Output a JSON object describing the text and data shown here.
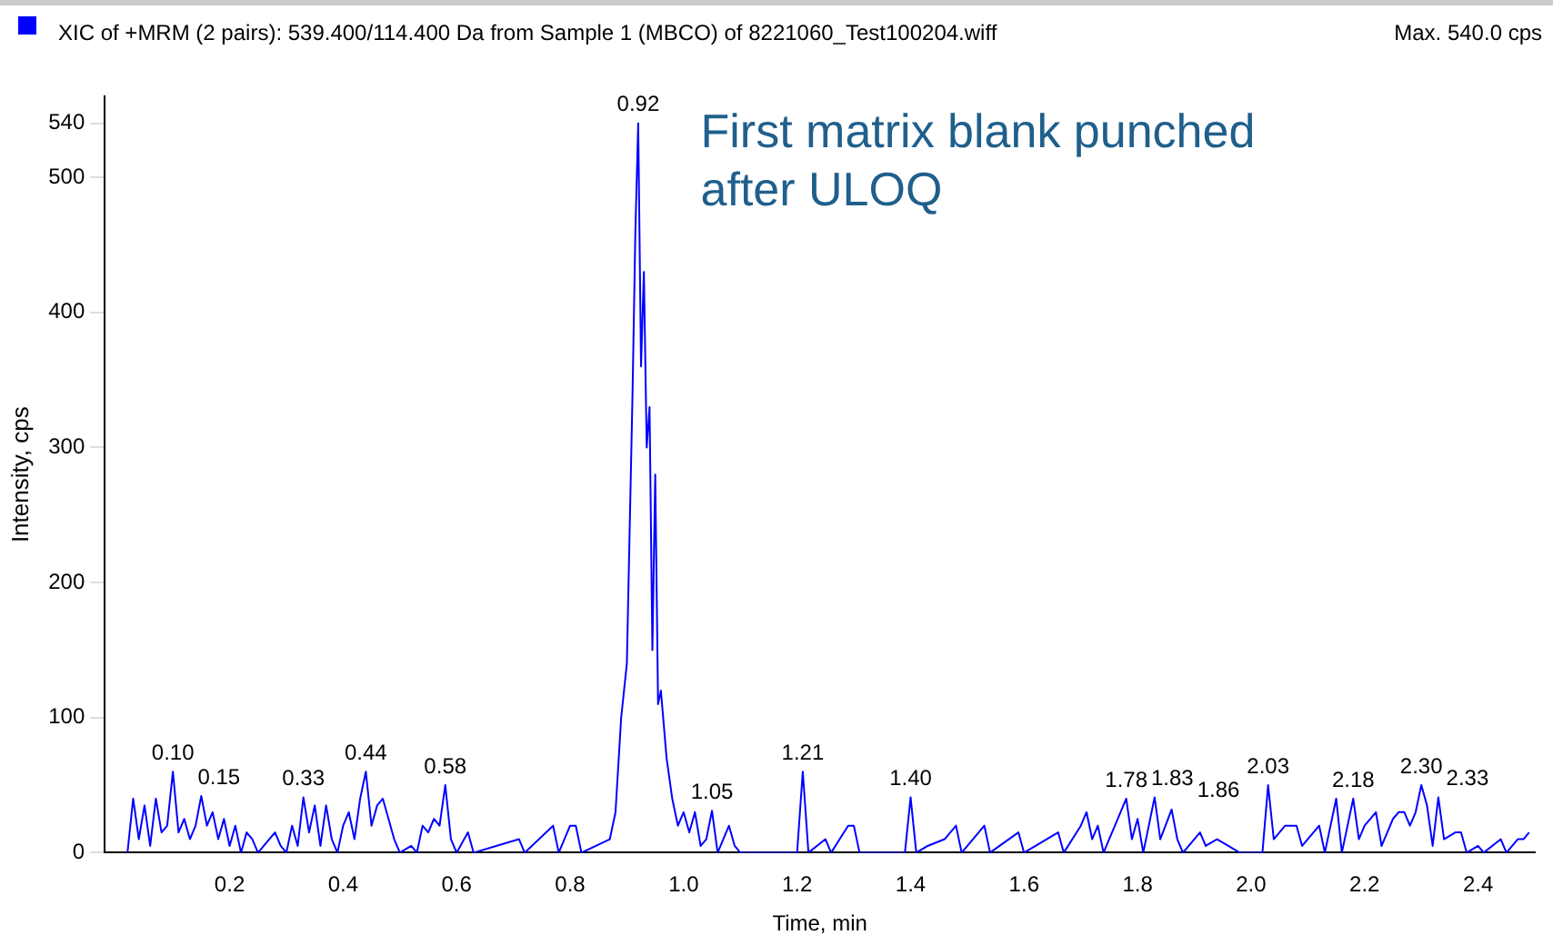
{
  "chart_data": {
    "type": "line",
    "title": "XIC of +MRM (2 pairs): 539.400/114.400 Da  from Sample 1 (MBCO) of 8221060_Test100204.wiff",
    "subtitle": "Max. 540.0 cps",
    "xlabel": "Time, min",
    "ylabel": "Intensity, cps",
    "xlim": [
      -0.02,
      2.5
    ],
    "xticks": [
      0.2,
      0.4,
      0.6,
      0.8,
      {
        "value": 1,
        "label": "1.0"
      },
      1.2,
      1.4,
      1.6,
      1.8,
      {
        "value": 2,
        "label": "2.0"
      },
      2.2,
      2.4
    ],
    "ylim": [
      0,
      560
    ],
    "yticks": [
      0,
      100,
      200,
      300,
      400,
      500,
      540
    ],
    "grid": false,
    "legend": false,
    "marker": "none",
    "line_style": "solid",
    "series": [
      {
        "color": "#0000ff",
        "x": [
          0.02,
          0.03,
          0.04,
          0.05,
          0.06,
          0.07,
          0.08,
          0.09,
          0.1,
          0.11,
          0.12,
          0.13,
          0.14,
          0.15,
          0.16,
          0.17,
          0.18,
          0.19,
          0.2,
          0.21,
          0.22,
          0.23,
          0.24,
          0.25,
          0.28,
          0.29,
          0.3,
          0.31,
          0.32,
          0.33,
          0.34,
          0.35,
          0.36,
          0.37,
          0.38,
          0.39,
          0.4,
          0.41,
          0.42,
          0.43,
          0.44,
          0.45,
          0.46,
          0.47,
          0.48,
          0.49,
          0.5,
          0.52,
          0.53,
          0.54,
          0.55,
          0.56,
          0.57,
          0.58,
          0.59,
          0.6,
          0.62,
          0.63,
          0.71,
          0.72,
          0.77,
          0.78,
          0.8,
          0.81,
          0.82,
          0.87,
          0.88,
          0.89,
          0.9,
          0.91,
          0.915,
          0.92,
          0.925,
          0.93,
          0.935,
          0.94,
          0.945,
          0.95,
          0.955,
          0.96,
          0.97,
          0.98,
          0.99,
          1.0,
          1.01,
          1.02,
          1.03,
          1.04,
          1.05,
          1.06,
          1.08,
          1.09,
          1.1,
          1.2,
          1.21,
          1.22,
          1.25,
          1.26,
          1.29,
          1.3,
          1.31,
          1.39,
          1.4,
          1.41,
          1.43,
          1.46,
          1.48,
          1.49,
          1.53,
          1.54,
          1.59,
          1.6,
          1.66,
          1.67,
          1.7,
          1.71,
          1.72,
          1.73,
          1.74,
          1.77,
          1.78,
          1.79,
          1.8,
          1.81,
          1.83,
          1.84,
          1.86,
          1.87,
          1.88,
          1.91,
          1.92,
          1.94,
          1.96,
          1.98,
          2.02,
          2.03,
          2.04,
          2.06,
          2.08,
          2.09,
          2.12,
          2.13,
          2.15,
          2.16,
          2.18,
          2.19,
          2.2,
          2.22,
          2.23,
          2.25,
          2.26,
          2.27,
          2.28,
          2.29,
          2.3,
          2.31,
          2.32,
          2.33,
          2.34,
          2.36,
          2.37,
          2.38,
          2.4,
          2.41,
          2.44,
          2.45,
          2.47,
          2.48,
          2.49
        ],
        "values": [
          0,
          40,
          10,
          35,
          5,
          40,
          15,
          20,
          60,
          15,
          25,
          10,
          20,
          42,
          20,
          30,
          10,
          25,
          5,
          20,
          0,
          15,
          10,
          0,
          15,
          5,
          0,
          20,
          5,
          41,
          15,
          35,
          5,
          35,
          10,
          0,
          20,
          30,
          10,
          40,
          60,
          20,
          35,
          40,
          25,
          10,
          0,
          5,
          0,
          20,
          15,
          25,
          20,
          50,
          10,
          0,
          15,
          0,
          10,
          0,
          20,
          0,
          20,
          20,
          0,
          10,
          30,
          100,
          140,
          340,
          460,
          540,
          360,
          430,
          300,
          330,
          150,
          280,
          110,
          120,
          70,
          40,
          20,
          30,
          15,
          30,
          5,
          10,
          31,
          0,
          20,
          5,
          0,
          0,
          60,
          0,
          10,
          0,
          20,
          20,
          0,
          0,
          41,
          0,
          5,
          10,
          20,
          0,
          20,
          0,
          15,
          0,
          15,
          0,
          20,
          30,
          10,
          20,
          0,
          30,
          40,
          10,
          25,
          0,
          41,
          10,
          32,
          10,
          0,
          15,
          5,
          10,
          5,
          0,
          0,
          50,
          10,
          20,
          20,
          5,
          20,
          0,
          40,
          0,
          40,
          10,
          20,
          30,
          5,
          25,
          30,
          30,
          20,
          30,
          50,
          35,
          5,
          41,
          10,
          15,
          15,
          0,
          5,
          0,
          10,
          0,
          10,
          10,
          15
        ]
      }
    ],
    "annotations": [
      "First matrix blank punched\nafter ULOQ",
      {
        "text": "0.10",
        "x": 0.1,
        "y": 60
      },
      {
        "text": "0.15",
        "x": 0.15,
        "y": 42
      },
      {
        "text": "0.33",
        "x": 0.33,
        "y": 41
      },
      {
        "text": "0.44",
        "x": 0.44,
        "y": 60
      },
      {
        "text": "0.58",
        "x": 0.58,
        "y": 50
      },
      {
        "text": "0.92",
        "x": 0.92,
        "y": 540
      },
      {
        "text": "1.05",
        "x": 1.05,
        "y": 31
      },
      {
        "text": "1.21",
        "x": 1.21,
        "y": 60
      },
      {
        "text": "1.40",
        "x": 1.4,
        "y": 41
      },
      {
        "text": "1.78",
        "x": 1.78,
        "y": 40
      },
      {
        "text": "1.83",
        "x": 1.83,
        "y": 41
      },
      {
        "text": "1.86",
        "x": 1.86,
        "y": 32
      },
      {
        "text": "2.03",
        "x": 2.03,
        "y": 50
      },
      {
        "text": "2.18",
        "x": 2.18,
        "y": 40
      },
      {
        "text": "2.30",
        "x": 2.3,
        "y": 50
      },
      {
        "text": "2.33",
        "x": 2.33,
        "y": 41
      }
    ]
  }
}
